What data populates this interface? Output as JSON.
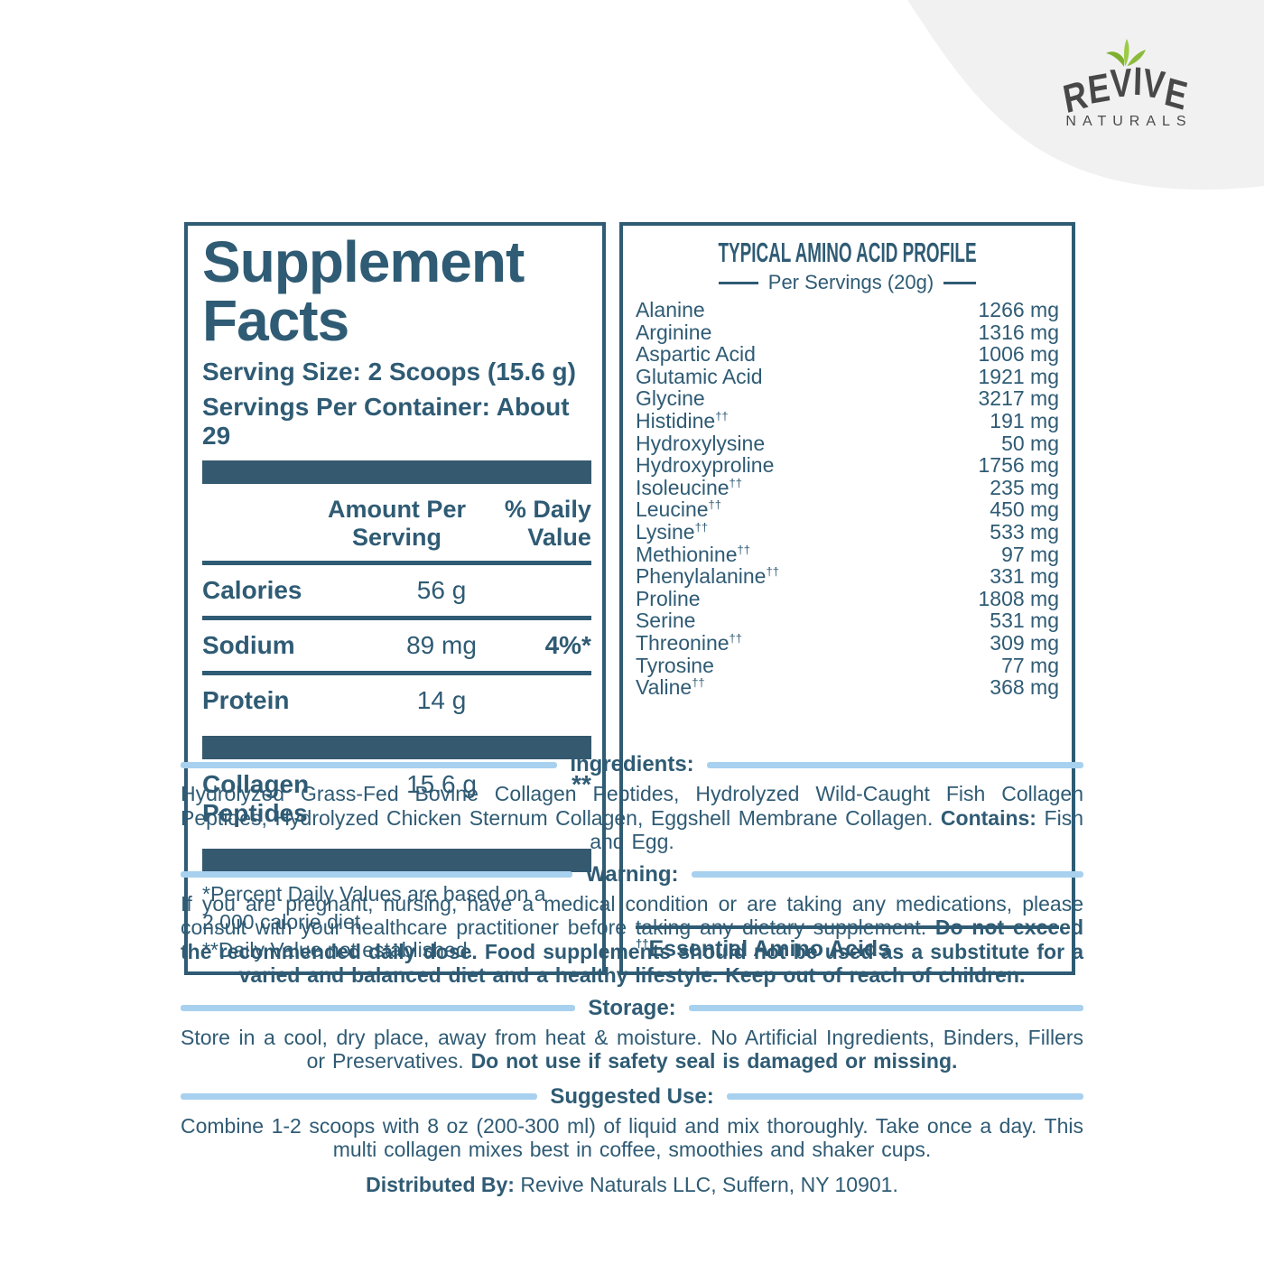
{
  "brand": {
    "name": "REVIVE",
    "sub": "NATURALS"
  },
  "colors": {
    "teal_text": "#2F5B74",
    "teal_bar": "#35596E",
    "light_blue_divider": "#A7D1EE",
    "logo_text": "#484848",
    "leaf_green_dark": "#7FAF2E",
    "leaf_green_light": "#9CCB45",
    "corner_blob_gray": "#F1F1F2"
  },
  "supplement_facts": {
    "title": "Supplement Facts",
    "serving_size": "Serving Size: 2 Scoops (15.6 g)",
    "servings_per_container": "Servings Per Container: About 29",
    "col_amount": "Amount Per Serving",
    "col_dv": "% Daily Value",
    "rows": [
      {
        "label": "Calories",
        "amount": "56 g",
        "dv": ""
      },
      {
        "label": "Sodium",
        "amount": "89 mg",
        "dv": "4%*"
      },
      {
        "label": "Protein",
        "amount": "14 g",
        "dv": ""
      }
    ],
    "rows2": [
      {
        "label": "Collagen Peptides",
        "amount": "15.6 g",
        "dv": "**"
      }
    ],
    "footnotes": [
      "*Percent Daily Values are based on a 2,000 calorie diet.",
      "**Daily Value not established."
    ]
  },
  "amino_profile": {
    "title": "TYPICAL AMINO ACID PROFILE",
    "subtitle": "Per Servings (20g)",
    "rows": [
      {
        "name": "Alanine",
        "mark": "",
        "value": "1266 mg"
      },
      {
        "name": "Arginine",
        "mark": "",
        "value": "1316 mg"
      },
      {
        "name": "Aspartic Acid",
        "mark": "",
        "value": "1006 mg"
      },
      {
        "name": "Glutamic Acid",
        "mark": "",
        "value": "1921 mg"
      },
      {
        "name": "Glycine",
        "mark": "",
        "value": "3217 mg"
      },
      {
        "name": "Histidine",
        "mark": "††",
        "value": "191 mg"
      },
      {
        "name": "Hydroxylysine",
        "mark": "",
        "value": "50 mg"
      },
      {
        "name": "Hydroxyproline",
        "mark": "",
        "value": "1756 mg"
      },
      {
        "name": "Isoleucine",
        "mark": "††",
        "value": "235 mg"
      },
      {
        "name": "Leucine",
        "mark": "††",
        "value": "450 mg"
      },
      {
        "name": "Lysine",
        "mark": "††",
        "value": "533 mg"
      },
      {
        "name": "Methionine",
        "mark": "††",
        "value": "97 mg"
      },
      {
        "name": "Phenylalanine",
        "mark": "††",
        "value": "331 mg"
      },
      {
        "name": "Proline",
        "mark": "",
        "value": "1808 mg"
      },
      {
        "name": "Serine",
        "mark": "",
        "value": "531 mg"
      },
      {
        "name": "Threonine",
        "mark": "††",
        "value": "309 mg"
      },
      {
        "name": "Tyrosine",
        "mark": "",
        "value": "77 mg"
      },
      {
        "name": "Valine",
        "mark": "††",
        "value": "368 mg"
      }
    ],
    "footnote_mark": "††",
    "footnote": "Essential Amino Acids"
  },
  "sections": [
    {
      "heading": "Ingredients:",
      "segments": [
        {
          "t": "Hydrolyzed Grass-Fed Bovine Collagen Peptides, Hydrolyzed Wild-Caught Fish Collagen Peptides, Hydrolyzed Chicken Sternum Collagen, Eggshell Membrane Collagen. ",
          "b": false
        },
        {
          "t": "Contains:",
          "b": true
        },
        {
          "t": " Fish and Egg.",
          "b": false
        }
      ]
    },
    {
      "heading": "Warning:",
      "segments": [
        {
          "t": "If you are pregnant, nursing, have a medical condition or are taking any medications, please consult with your healthcare practitioner before taking any dietary supplement. ",
          "b": false
        },
        {
          "t": "Do not exceed the recommended daily dose. Food supplements should not be used as a substitute for a varied and balanced diet and a healthy lifestyle. Keep out of reach of children.",
          "b": true
        }
      ]
    },
    {
      "heading": "Storage:",
      "segments": [
        {
          "t": "Store in a cool, dry place, away from heat & moisture. No Artificial Ingredients, Binders, Fillers or Preservatives. ",
          "b": false
        },
        {
          "t": "Do not use if safety seal is damaged or missing.",
          "b": true
        }
      ]
    },
    {
      "heading": "Suggested Use:",
      "segments": [
        {
          "t": "Combine 1-2 scoops with 8 oz (200-300 ml) of liquid and mix thoroughly. Take once a day. This multi collagen mixes best in coffee, smoothies and shaker cups.",
          "b": false
        }
      ]
    }
  ],
  "distributed_by": {
    "segments": [
      {
        "t": "Distributed By:",
        "b": true
      },
      {
        "t": " Revive Naturals LLC, Suffern, NY 10901.",
        "b": false
      }
    ]
  }
}
